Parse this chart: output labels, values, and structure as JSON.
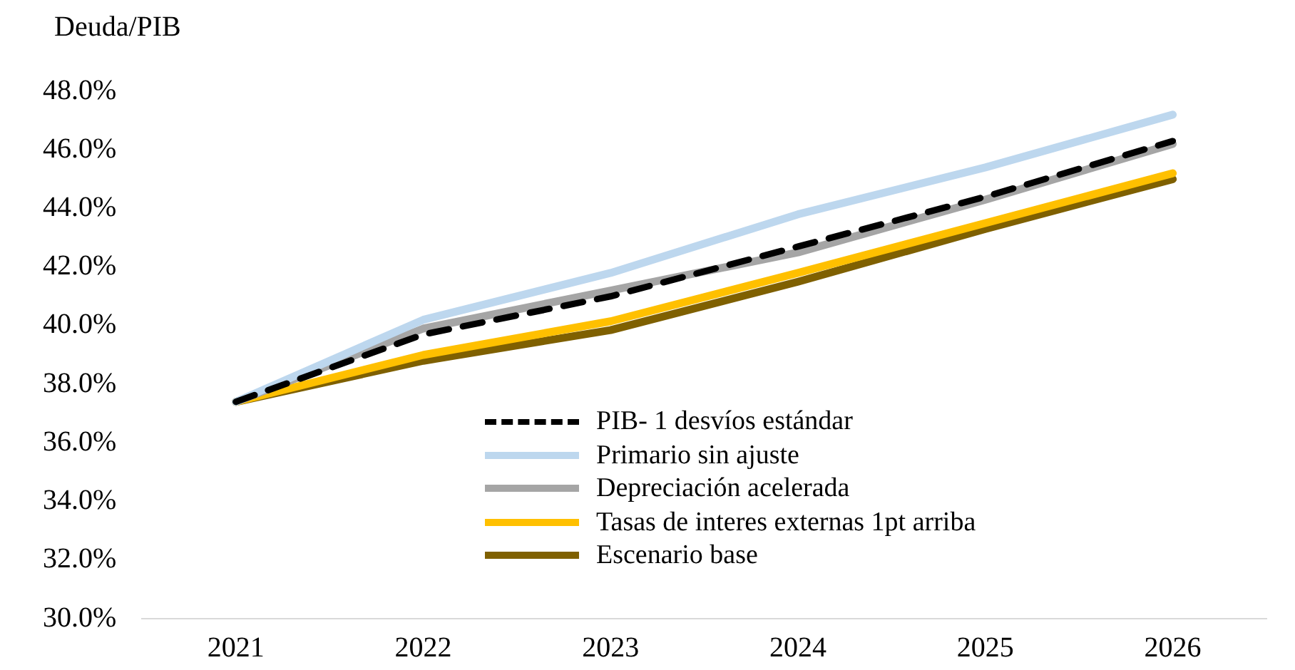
{
  "chart_data": {
    "type": "line",
    "ylabel": "Deuda/PIB",
    "categories": [
      "2021",
      "2022",
      "2023",
      "2024",
      "2025",
      "2026"
    ],
    "series": [
      {
        "name": "PIB- 1 desvíos estándar",
        "color": "#000000",
        "line_style": "dashed",
        "values": [
          37.4,
          39.7,
          41.0,
          42.7,
          44.4,
          46.3
        ]
      },
      {
        "name": "Primario sin ajuste",
        "color": "#bdd7ee",
        "values": [
          37.4,
          40.2,
          41.8,
          43.8,
          45.4,
          47.2
        ]
      },
      {
        "name": "Depreciación acelerada",
        "color": "#a5a5a5",
        "values": [
          37.4,
          39.9,
          41.2,
          42.5,
          44.3,
          46.2
        ]
      },
      {
        "name": "Tasas de interes externas 1pt arriba",
        "color": "#ffc000",
        "values": [
          37.4,
          39.0,
          40.15,
          41.8,
          43.5,
          45.2
        ]
      },
      {
        "name": "Escenario base",
        "color": "#7f6000",
        "values": [
          37.4,
          38.8,
          39.85,
          41.5,
          43.3,
          45.0
        ]
      }
    ],
    "ylim": [
      30,
      48
    ],
    "yticks": [
      {
        "value": 30,
        "label": "30.0%"
      },
      {
        "value": 32,
        "label": "32.0%"
      },
      {
        "value": 34,
        "label": "34.0%"
      },
      {
        "value": 36,
        "label": "36.0%"
      },
      {
        "value": 38,
        "label": "38.0%"
      },
      {
        "value": 40,
        "label": "40.0%"
      },
      {
        "value": 42,
        "label": "42.0%"
      },
      {
        "value": 44,
        "label": "44.0%"
      },
      {
        "value": 46,
        "label": "46.0%"
      },
      {
        "value": 48,
        "label": "48.0%"
      }
    ],
    "grid": false,
    "legend": "bottom",
    "marker": "none",
    "line_style": "solid"
  }
}
